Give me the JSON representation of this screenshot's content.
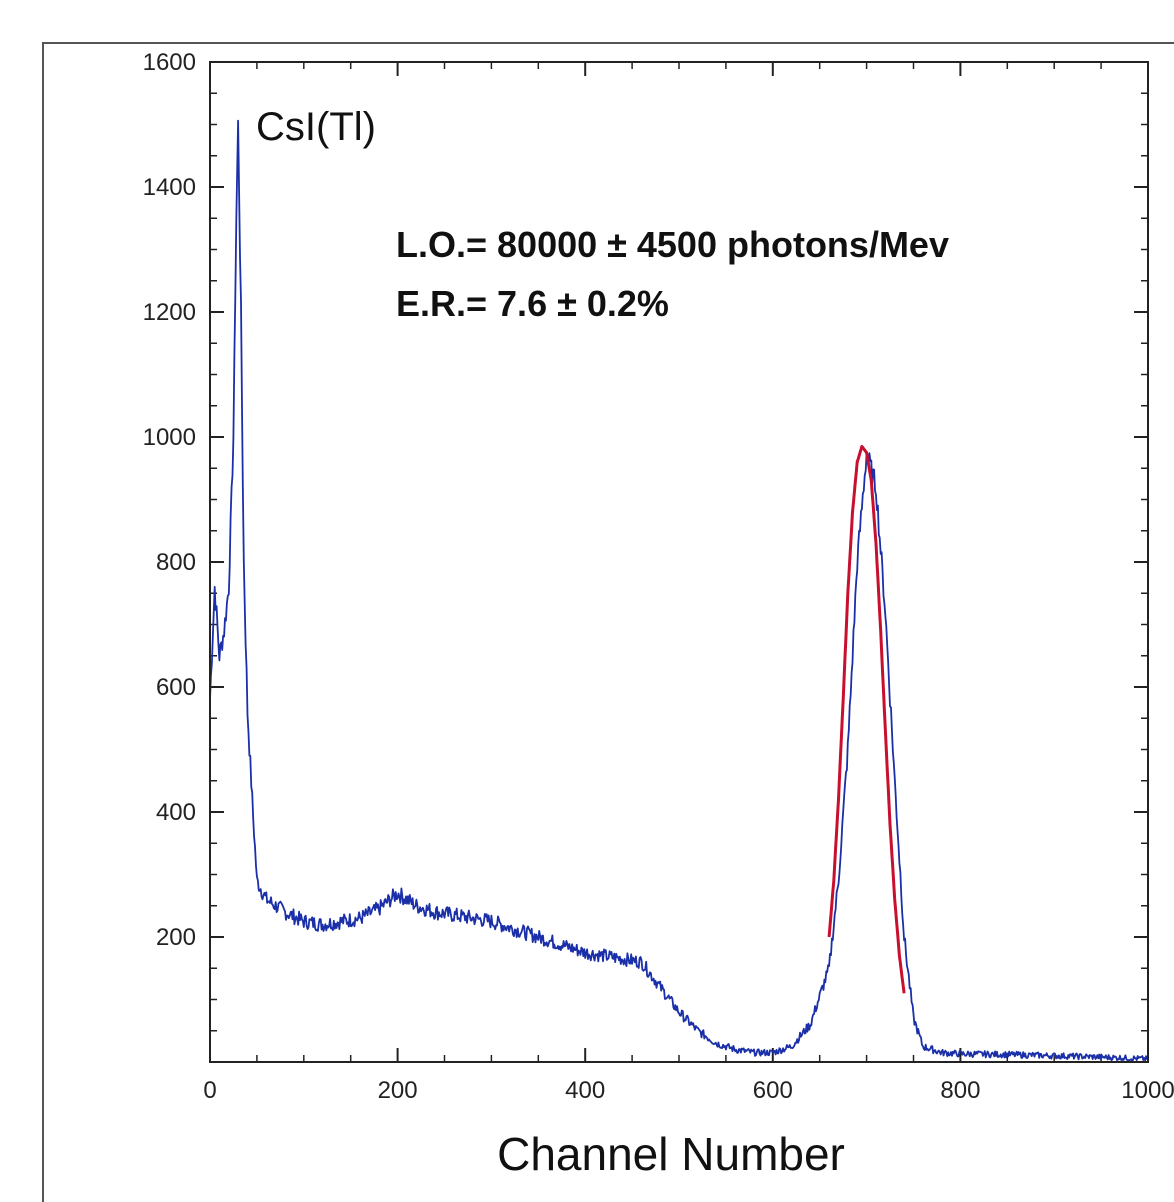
{
  "chart_data": {
    "type": "line",
    "title": "",
    "xlabel": "Channel Number",
    "ylabel": "",
    "xlim": [
      0,
      1000
    ],
    "ylim": [
      0,
      1600
    ],
    "xticks": [
      0,
      200,
      400,
      600,
      800,
      1000
    ],
    "xtick_labels": [
      "0",
      "200",
      "400",
      "600",
      "800",
      "1000"
    ],
    "yticks": [
      200,
      400,
      600,
      800,
      1000,
      1200,
      1400,
      1600
    ],
    "ytick_labels": [
      "200",
      "400",
      "600",
      "800",
      "1000",
      "1200",
      "1400",
      "1600"
    ],
    "grid": false,
    "annotations": [
      {
        "id": "material",
        "text": "CsI(Tl)"
      },
      {
        "id": "lo",
        "text": "L.O.= 80000 ± 4500 photons/Mev"
      },
      {
        "id": "er",
        "text": "E.R.= 7.6 ± 0.2%"
      }
    ],
    "series": [
      {
        "color": "#1a2fa8",
        "x": [
          0,
          5,
          10,
          15,
          20,
          25,
          28,
          30,
          33,
          36,
          40,
          45,
          50,
          60,
          70,
          80,
          100,
          120,
          140,
          160,
          180,
          200,
          220,
          240,
          260,
          280,
          300,
          320,
          340,
          360,
          380,
          400,
          420,
          440,
          460,
          480,
          500,
          520,
          540,
          560,
          580,
          600,
          620,
          640,
          660,
          670,
          680,
          690,
          700,
          710,
          720,
          730,
          740,
          750,
          760,
          780,
          800,
          850,
          900,
          950,
          1000
        ],
        "y": [
          580,
          760,
          650,
          690,
          760,
          1000,
          1350,
          1500,
          1200,
          800,
          560,
          420,
          290,
          260,
          250,
          240,
          225,
          220,
          225,
          230,
          245,
          270,
          250,
          240,
          235,
          230,
          225,
          215,
          205,
          195,
          185,
          175,
          170,
          165,
          160,
          120,
          80,
          50,
          30,
          20,
          15,
          15,
          25,
          60,
          150,
          290,
          500,
          800,
          975,
          920,
          720,
          450,
          200,
          70,
          25,
          15,
          13,
          12,
          10,
          8,
          5
        ]
      },
      {
        "color": "#c8102e",
        "x": [
          660,
          665,
          670,
          675,
          680,
          685,
          690,
          695,
          700,
          705,
          710,
          715,
          720,
          725,
          730,
          735,
          740
        ],
        "y": [
          200,
          290,
          420,
          580,
          750,
          880,
          960,
          985,
          975,
          930,
          830,
          690,
          530,
          380,
          260,
          170,
          110
        ]
      }
    ]
  }
}
